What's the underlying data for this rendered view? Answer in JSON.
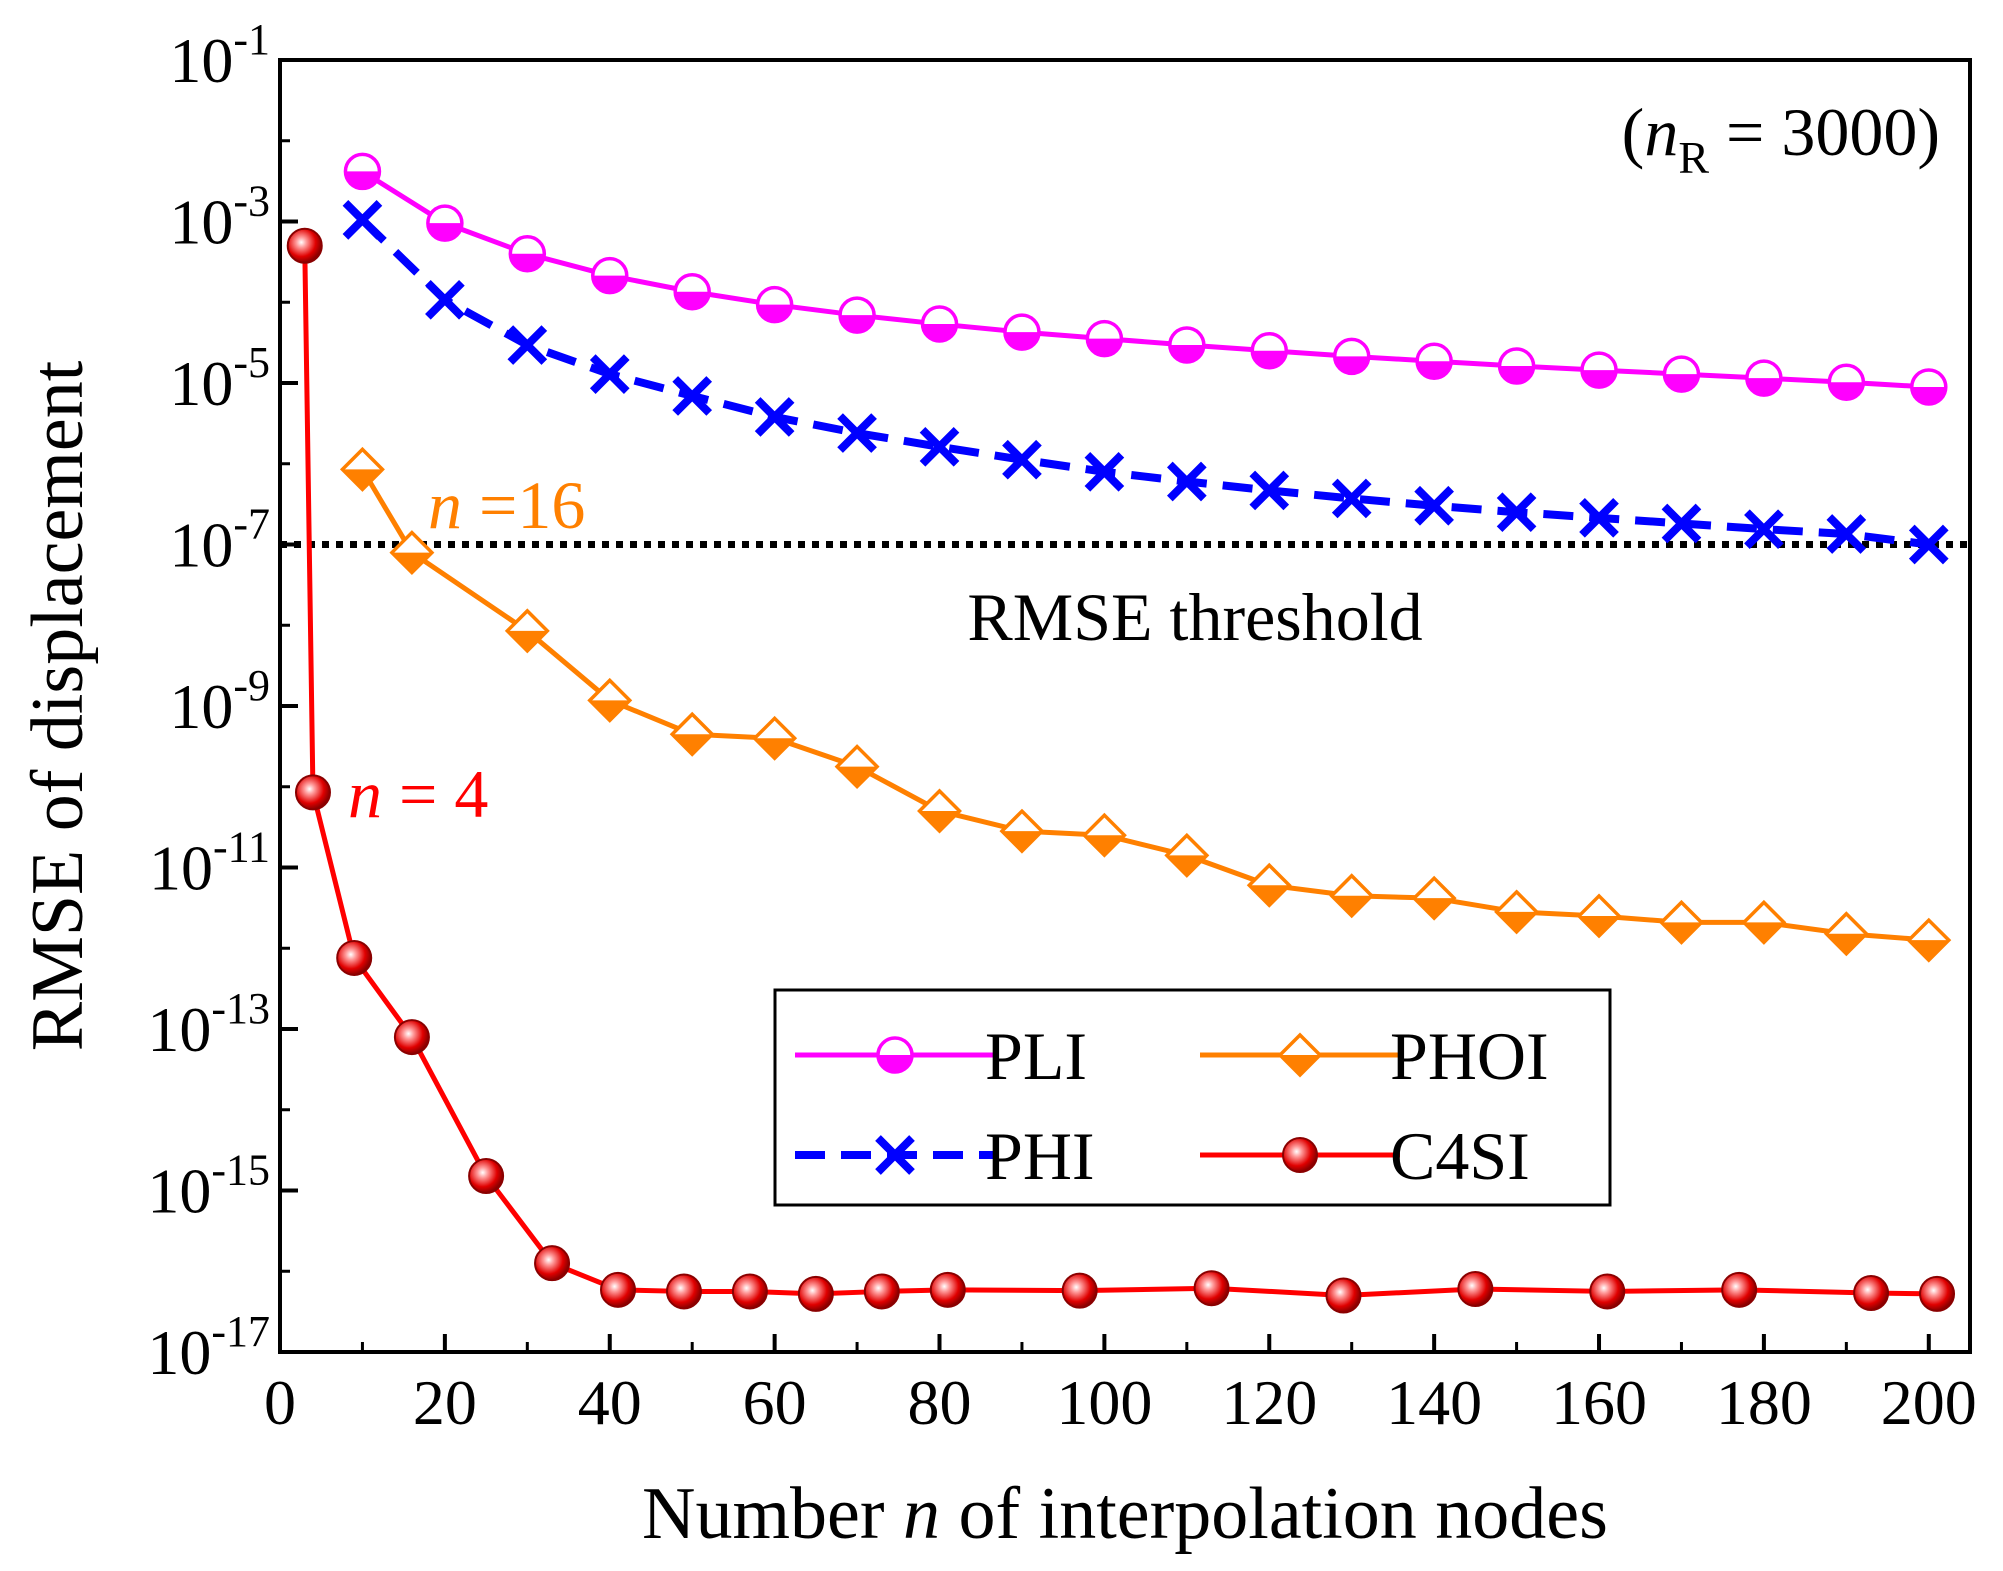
{
  "chart_data": {
    "type": "line",
    "title": "",
    "xlabel": {
      "pre": "Number ",
      "var": "n",
      "post": " of interpolation nodes"
    },
    "ylabel": "RMSE of displacement",
    "xlim": [
      0,
      205
    ],
    "ylim_exp": [
      -17,
      -1
    ],
    "y_scale": "log10",
    "x_ticks": [
      0,
      20,
      40,
      60,
      80,
      100,
      120,
      140,
      160,
      180,
      200
    ],
    "y_ticks": [
      {
        "base": "10",
        "exp": "-1"
      },
      {
        "base": "10",
        "exp": "-3"
      },
      {
        "base": "10",
        "exp": "-5"
      },
      {
        "base": "10",
        "exp": "-7"
      },
      {
        "base": "10",
        "exp": "-9"
      },
      {
        "base": "10",
        "exp": "-11"
      },
      {
        "base": "10",
        "exp": "-13"
      },
      {
        "base": "10",
        "exp": "-15"
      },
      {
        "base": "10",
        "exp": "-17"
      }
    ],
    "series": [
      {
        "name": "PLI",
        "color": "#ff00ff",
        "marker": "circle-half",
        "line": "solid",
        "x": [
          10,
          20,
          30,
          40,
          50,
          60,
          70,
          80,
          90,
          100,
          110,
          120,
          130,
          140,
          150,
          160,
          170,
          180,
          190,
          200
        ],
        "log_y": [
          -2.38,
          -3.02,
          -3.4,
          -3.67,
          -3.87,
          -4.03,
          -4.16,
          -4.27,
          -4.37,
          -4.45,
          -4.53,
          -4.6,
          -4.67,
          -4.73,
          -4.79,
          -4.84,
          -4.89,
          -4.94,
          -4.99,
          -5.05
        ]
      },
      {
        "name": "PHI",
        "color": "#0000ff",
        "marker": "x",
        "line": "dashed",
        "x": [
          10,
          20,
          30,
          40,
          50,
          60,
          70,
          80,
          90,
          100,
          110,
          120,
          130,
          140,
          150,
          160,
          170,
          180,
          190,
          200
        ],
        "log_y": [
          -2.98,
          -3.97,
          -4.53,
          -4.89,
          -5.16,
          -5.42,
          -5.62,
          -5.79,
          -5.95,
          -6.1,
          -6.22,
          -6.33,
          -6.43,
          -6.52,
          -6.6,
          -6.67,
          -6.74,
          -6.81,
          -6.87,
          -7.0
        ]
      },
      {
        "name": "PHOI",
        "color": "#ff8000",
        "marker": "diamond-half",
        "line": "solid",
        "x": [
          10,
          16,
          30,
          40,
          50,
          60,
          70,
          80,
          90,
          100,
          110,
          120,
          130,
          140,
          150,
          160,
          170,
          180,
          190,
          200
        ],
        "log_y": [
          -6.07,
          -7.1,
          -8.07,
          -8.93,
          -9.35,
          -9.4,
          -9.75,
          -10.3,
          -10.55,
          -10.6,
          -10.85,
          -11.22,
          -11.35,
          -11.38,
          -11.55,
          -11.6,
          -11.68,
          -11.68,
          -11.82,
          -11.9
        ]
      },
      {
        "name": "C4SI",
        "color": "#ff0000",
        "marker": "sphere",
        "line": "solid",
        "x": [
          3,
          4,
          9,
          16,
          25,
          33,
          41,
          49,
          57,
          65,
          73,
          81,
          97,
          113,
          129,
          145,
          161,
          177,
          193,
          201
        ],
        "log_y": [
          -3.3,
          -10.07,
          -12.12,
          -13.1,
          -14.82,
          -15.9,
          -16.23,
          -16.25,
          -16.25,
          -16.28,
          -16.25,
          -16.23,
          -16.24,
          -16.21,
          -16.3,
          -16.22,
          -16.25,
          -16.23,
          -16.27,
          -16.28
        ]
      }
    ],
    "threshold": {
      "log_y": -7,
      "label": "RMSE threshold"
    },
    "annotations": [
      {
        "id": "nR",
        "pre": "(",
        "var": "n",
        "sub": "R",
        "post": " = 3000)"
      },
      {
        "id": "n16",
        "var": "n",
        "text": " =16",
        "color": "#ff8000"
      },
      {
        "id": "n4",
        "var": "n",
        "text": " = 4",
        "color": "#ff0000"
      }
    ],
    "legend": {
      "placement": "lower-right",
      "order": [
        "PLI",
        "PHOI",
        "PHI",
        "C4SI"
      ]
    }
  }
}
